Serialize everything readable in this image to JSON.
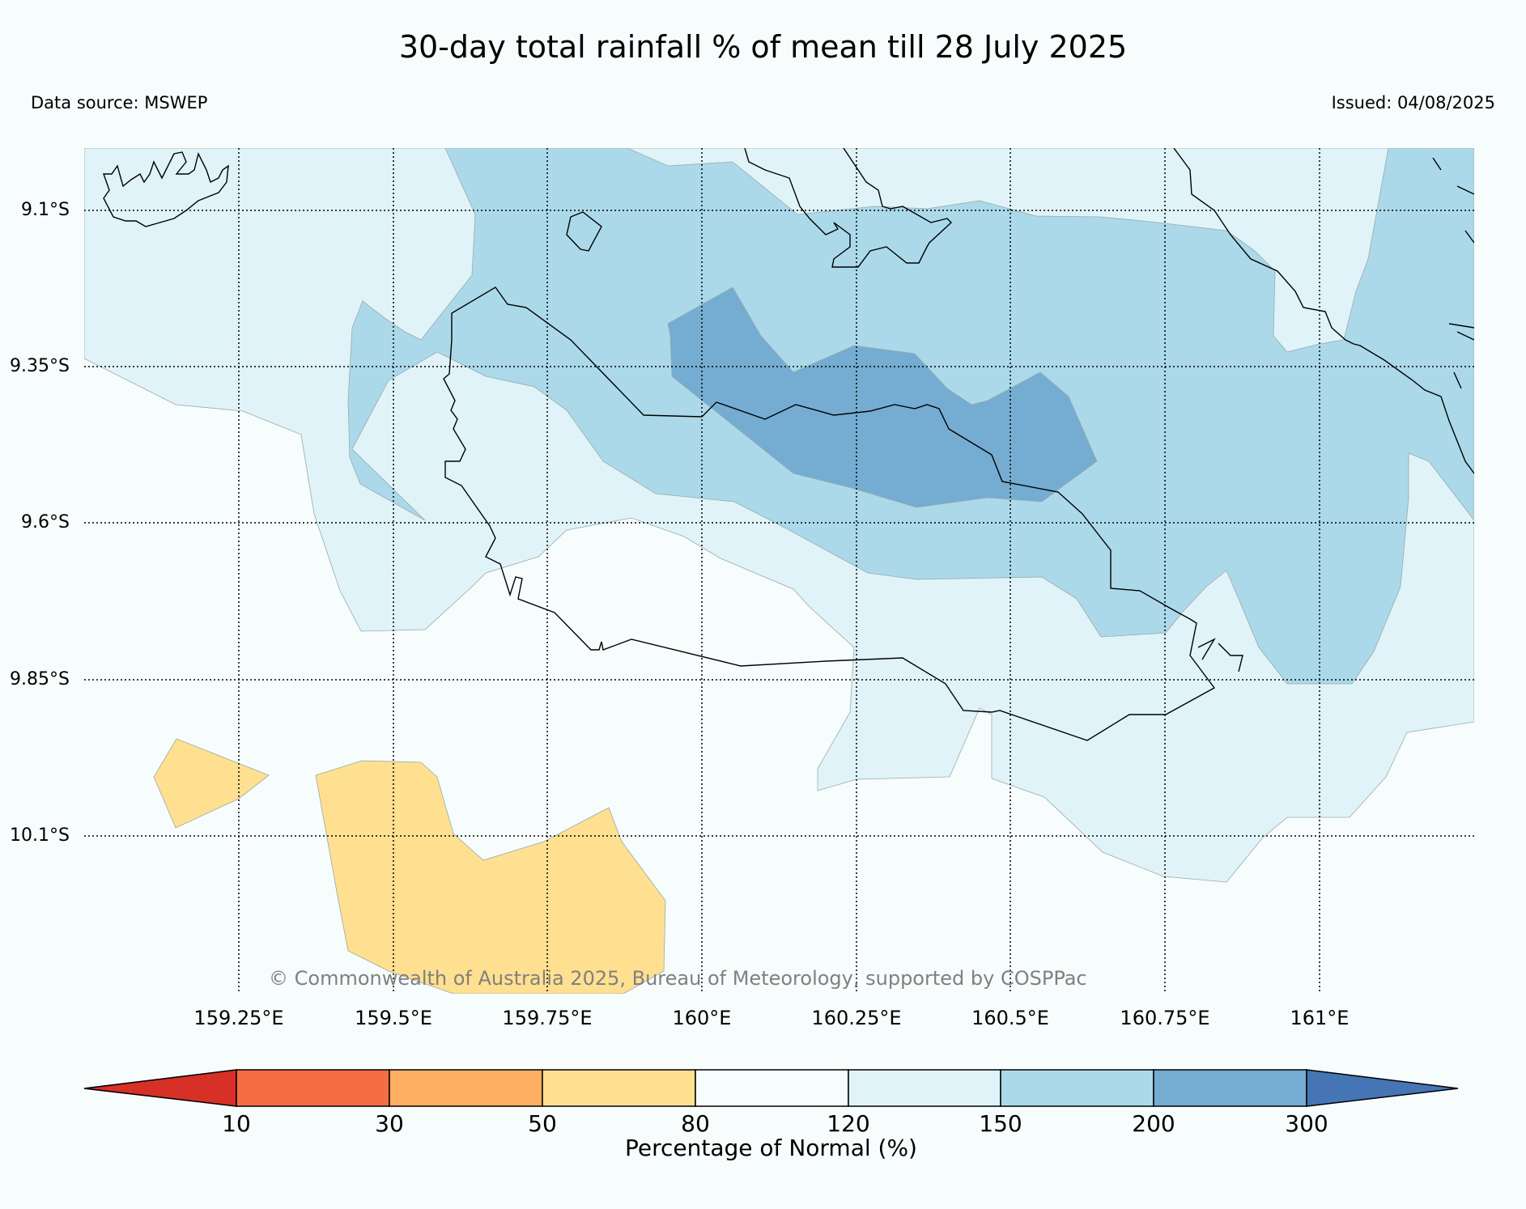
{
  "title": "30-day total rainfall % of mean till 28 July 2025",
  "data_source": "Data source: MSWEP",
  "issued": "Issued: 04/08/2025",
  "copyright": "© Commonwealth of Australia 2025, Bureau of Meteorology, supported by COSPPac",
  "map": {
    "lon_range": [
      159.0,
      161.25
    ],
    "lat_range": [
      -10.35,
      -9.0
    ],
    "lat_ticks": [
      {
        "value": -9.1,
        "label": "9.1°S"
      },
      {
        "value": -9.35,
        "label": "9.35°S"
      },
      {
        "value": -9.6,
        "label": "9.6°S"
      },
      {
        "value": -9.85,
        "label": "9.85°S"
      },
      {
        "value": -10.1,
        "label": "10.1°S"
      }
    ],
    "lon_ticks": [
      {
        "value": 159.25,
        "label": "159.25°E"
      },
      {
        "value": 159.5,
        "label": "159.5°E"
      },
      {
        "value": 159.75,
        "label": "159.75°E"
      },
      {
        "value": 160.0,
        "label": "160°E"
      },
      {
        "value": 160.25,
        "label": "160.25°E"
      },
      {
        "value": 160.5,
        "label": "160.5°E"
      },
      {
        "value": 160.75,
        "label": "160.75°E"
      },
      {
        "value": 161.0,
        "label": "161°E"
      }
    ],
    "grid": true
  },
  "colorbar": {
    "label": "Percentage of Normal (%)",
    "ticks": [
      "10",
      "30",
      "50",
      "80",
      "120",
      "150",
      "200",
      "300"
    ],
    "colors": {
      "under_10": "#d73027",
      "10_30": "#f46d43",
      "30_50": "#fdae61",
      "50_80": "#fee090",
      "80_120": "#f7fcfd",
      "120_150": "#e0f3f8",
      "150_200": "#abd9e9",
      "200_300": "#74add1",
      "over_300": "#4575b4"
    }
  }
}
